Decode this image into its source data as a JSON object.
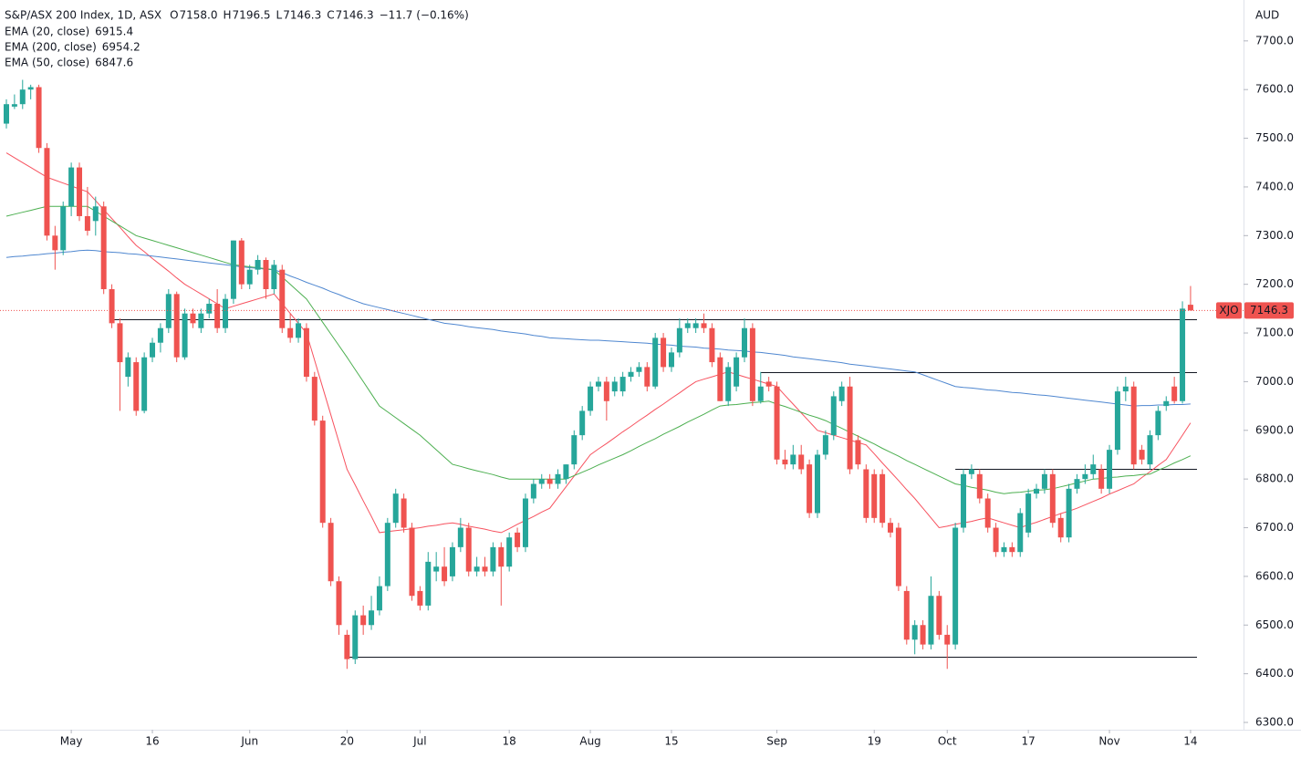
{
  "chart_data": {
    "type": "candlestick",
    "title": "S&P/ASX 200 Index, 1D, ASX",
    "ohlc": [
      {
        "label": "O",
        "value": "7158.0"
      },
      {
        "label": "H",
        "value": "7196.5"
      },
      {
        "label": "L",
        "value": "7146.3"
      },
      {
        "label": "C",
        "value": "7146.3"
      }
    ],
    "change": "−11.7 (−0.16%)",
    "header_color": "#f23645",
    "symbol": "XJO",
    "y_axis_label": "AUD",
    "up_color": "#26a69a",
    "down_color": "#ef5350",
    "ylim": [
      6285,
      7784
    ],
    "yticks": [
      {
        "value": 6300,
        "label": "6300.0"
      },
      {
        "value": 6400,
        "label": "6400.0"
      },
      {
        "value": 6500,
        "label": "6500.0"
      },
      {
        "value": 6600,
        "label": "6600.0"
      },
      {
        "value": 6700,
        "label": "6700.0"
      },
      {
        "value": 6800,
        "label": "6800.0"
      },
      {
        "value": 6900,
        "label": "6900.0"
      },
      {
        "value": 7000,
        "label": "7000.0"
      },
      {
        "value": 7100,
        "label": "7100.0"
      },
      {
        "value": 7200,
        "label": "7200.0"
      },
      {
        "value": 7300,
        "label": "7300.0"
      },
      {
        "value": 7400,
        "label": "7400.0"
      },
      {
        "value": 7500,
        "label": "7500.0"
      },
      {
        "value": 7600,
        "label": "7600.0"
      },
      {
        "value": 7700,
        "label": "7700.0"
      }
    ],
    "levels": [
      7128,
      7020,
      6821,
      6435
    ],
    "levels_color": "#131722",
    "categories": [
      null,
      null,
      null,
      null,
      null,
      null,
      null,
      null,
      "May",
      null,
      null,
      null,
      null,
      null,
      null,
      null,
      null,
      null,
      "16",
      null,
      null,
      null,
      null,
      null,
      null,
      null,
      null,
      null,
      null,
      null,
      "Jun",
      null,
      null,
      null,
      null,
      null,
      null,
      null,
      null,
      null,
      null,
      null,
      "20",
      null,
      null,
      null,
      null,
      null,
      null,
      null,
      null,
      "Jul",
      null,
      null,
      null,
      null,
      null,
      null,
      null,
      null,
      null,
      null,
      "18",
      null,
      null,
      null,
      null,
      null,
      null,
      null,
      null,
      null,
      "Aug",
      null,
      null,
      null,
      null,
      null,
      null,
      null,
      null,
      null,
      "15",
      null,
      null,
      null,
      null,
      null,
      null,
      null,
      null,
      null,
      null,
      null,
      null,
      "Sep",
      null,
      null,
      null,
      null,
      null,
      null,
      null,
      null,
      null,
      null,
      null,
      "19",
      null,
      null,
      null,
      null,
      null,
      null,
      null,
      null,
      "Oct",
      null,
      null,
      null,
      null,
      null,
      null,
      null,
      null,
      null,
      "17",
      null,
      null,
      null,
      null,
      null,
      null,
      null,
      null,
      null,
      "Nov",
      null,
      null,
      null,
      null,
      null,
      null,
      null,
      null,
      null,
      "14"
    ],
    "open": [
      7530,
      7565,
      7570,
      7600,
      7605,
      7480,
      7300,
      7270,
      7360,
      7440,
      7340,
      7330,
      7360,
      7190,
      7120,
      7010,
      7040,
      6940,
      7050,
      7080,
      7110,
      7180,
      7050,
      7140,
      7110,
      7140,
      7160,
      7110,
      7170,
      7290,
      7200,
      7230,
      7250,
      7190,
      7230,
      7110,
      7090,
      7110,
      7010,
      6920,
      6710,
      6590,
      6480,
      6430,
      6520,
      6500,
      6530,
      6580,
      6710,
      6760,
      6700,
      6570,
      6540,
      6610,
      6620,
      6600,
      6660,
      6700,
      6610,
      6620,
      6610,
      6660,
      6620,
      6690,
      6660,
      6760,
      6790,
      6800,
      6790,
      6800,
      6830,
      6890,
      6940,
      6990,
      7000,
      6980,
      6980,
      7010,
      7020,
      7030,
      6990,
      7090,
      7030,
      7060,
      7110,
      7110,
      7120,
      7110,
      7050,
      6960,
      6990,
      7050,
      7110,
      6960,
      7000,
      6990,
      6840,
      6830,
      6850,
      6830,
      6730,
      6850,
      6890,
      6960,
      6990,
      6880,
      6820,
      6810,
      6810,
      6710,
      6700,
      6570,
      6470,
      6500,
      6460,
      6560,
      6480,
      6460,
      6700,
      6810,
      6810,
      6760,
      6700,
      6650,
      6660,
      6650,
      6690,
      6770,
      6780,
      6810,
      6720,
      6680,
      6780,
      6800,
      6810,
      6820,
      6780,
      6860,
      6980,
      6990,
      6860,
      6830,
      6890,
      6950,
      6990,
      6960,
      7158
    ],
    "high": [
      7580,
      7590,
      7620,
      7610,
      7610,
      7490,
      7320,
      7370,
      7450,
      7450,
      7400,
      7380,
      7370,
      7200,
      7130,
      7060,
      7050,
      7060,
      7090,
      7120,
      7190,
      7185,
      7150,
      7150,
      7150,
      7170,
      7190,
      7180,
      7290,
      7295,
      7240,
      7260,
      7255,
      7250,
      7240,
      7140,
      7130,
      7120,
      7020,
      6930,
      6720,
      6600,
      6490,
      6530,
      6540,
      6560,
      6600,
      6720,
      6780,
      6770,
      6710,
      6580,
      6650,
      6650,
      6660,
      6670,
      6720,
      6710,
      6640,
      6640,
      6670,
      6670,
      6690,
      6700,
      6770,
      6800,
      6810,
      6810,
      6820,
      6830,
      6900,
      6950,
      7000,
      7010,
      7010,
      7010,
      7020,
      7030,
      7040,
      7040,
      7100,
      7100,
      7070,
      7130,
      7130,
      7130,
      7140,
      7120,
      7060,
      7040,
      7060,
      7130,
      7120,
      7020,
      7010,
      7000,
      6860,
      6870,
      6870,
      6840,
      6860,
      6900,
      6980,
      7000,
      7010,
      6890,
      6830,
      6820,
      6820,
      6720,
      6710,
      6580,
      6510,
      6510,
      6600,
      6570,
      6500,
      6710,
      6820,
      6830,
      6820,
      6770,
      6710,
      6670,
      6670,
      6740,
      6780,
      6790,
      6820,
      6820,
      6730,
      6790,
      6810,
      6830,
      6850,
      6830,
      6870,
      6990,
      7010,
      7000,
      6870,
      6900,
      6950,
      6970,
      7010,
      7165,
      7196.5
    ],
    "low": [
      7520,
      7560,
      7560,
      7580,
      7470,
      7290,
      7230,
      7260,
      7340,
      7330,
      7300,
      7300,
      7180,
      7110,
      6940,
      6990,
      6930,
      6935,
      7040,
      7060,
      7100,
      7040,
      7045,
      7110,
      7100,
      7130,
      7100,
      7100,
      7160,
      7190,
      7190,
      7220,
      7170,
      7180,
      7100,
      7080,
      7080,
      7000,
      6910,
      6700,
      6580,
      6480,
      6410,
      6420,
      6480,
      6490,
      6520,
      6570,
      6700,
      6690,
      6550,
      6530,
      6530,
      6590,
      6580,
      6590,
      6650,
      6600,
      6600,
      6600,
      6600,
      6540,
      6610,
      6650,
      6650,
      6750,
      6780,
      6780,
      6780,
      6790,
      6820,
      6880,
      6930,
      6980,
      6920,
      6970,
      6970,
      7000,
      7010,
      6980,
      6985,
      7020,
      7020,
      7050,
      7100,
      7100,
      7100,
      7030,
      6960,
      6950,
      6980,
      7040,
      6950,
      6955,
      6980,
      6830,
      6820,
      6820,
      6810,
      6720,
      6720,
      6840,
      6880,
      6950,
      6810,
      6820,
      6710,
      6710,
      6700,
      6680,
      6570,
      6460,
      6440,
      6450,
      6450,
      6470,
      6410,
      6450,
      6690,
      6800,
      6750,
      6690,
      6640,
      6640,
      6640,
      6640,
      6680,
      6760,
      6770,
      6700,
      6670,
      6670,
      6770,
      6790,
      6800,
      6770,
      6770,
      6850,
      6960,
      6820,
      6830,
      6820,
      6880,
      6940,
      6955,
      6955,
      7146.3
    ],
    "close": [
      7570,
      7570,
      7600,
      7605,
      7480,
      7300,
      7270,
      7360,
      7440,
      7340,
      7310,
      7360,
      7190,
      7120,
      7040,
      7050,
      6940,
      7050,
      7080,
      7110,
      7180,
      7050,
      7140,
      7120,
      7140,
      7160,
      7110,
      7170,
      7290,
      7200,
      7230,
      7250,
      7190,
      7240,
      7110,
      7090,
      7120,
      7010,
      6920,
      6710,
      6590,
      6500,
      6430,
      6520,
      6500,
      6530,
      6580,
      6710,
      6770,
      6700,
      6560,
      6540,
      6630,
      6620,
      6590,
      6660,
      6700,
      6610,
      6620,
      6610,
      6660,
      6620,
      6680,
      6660,
      6760,
      6790,
      6800,
      6790,
      6810,
      6830,
      6890,
      6940,
      6990,
      7000,
      6960,
      7000,
      7010,
      7020,
      7030,
      6990,
      7090,
      7030,
      7060,
      7110,
      7120,
      7120,
      7110,
      7040,
      6960,
      7030,
      7050,
      7110,
      6960,
      6990,
      6990,
      6840,
      6830,
      6850,
      6820,
      6730,
      6850,
      6890,
      6970,
      6990,
      6820,
      6830,
      6720,
      6720,
      6710,
      6690,
      6580,
      6470,
      6500,
      6460,
      6560,
      6480,
      6460,
      6700,
      6810,
      6820,
      6760,
      6700,
      6650,
      6660,
      6650,
      6730,
      6770,
      6780,
      6810,
      6710,
      6680,
      6780,
      6800,
      6810,
      6830,
      6780,
      6860,
      6980,
      6990,
      6830,
      6840,
      6890,
      6940,
      6960,
      6960,
      7150,
      7146.3
    ],
    "series": [
      {
        "name": "EMA (20, close)",
        "color": "#f7525f",
        "values": [
          7470,
          7460,
          7450,
          7440,
          7430,
          7420,
          7414,
          7408,
          7402,
          7396,
          7390,
          7372,
          7353,
          7335,
          7317,
          7298,
          7280,
          7267,
          7253,
          7240,
          7227,
          7213,
          7200,
          7190,
          7180,
          7170,
          7160,
          7150,
          7155,
          7160,
          7165,
          7170,
          7175,
          7180,
          7160,
          7140,
          7120,
          7100,
          7044,
          6988,
          6932,
          6876,
          6820,
          6788,
          6755,
          6723,
          6690,
          6692,
          6694,
          6696,
          6698,
          6700,
          6703,
          6705,
          6708,
          6710,
          6707,
          6703,
          6700,
          6697,
          6693,
          6690,
          6698,
          6707,
          6715,
          6723,
          6732,
          6740,
          6762,
          6784,
          6806,
          6828,
          6850,
          6862,
          6873,
          6885,
          6897,
          6908,
          6920,
          6931,
          6943,
          6954,
          6966,
          6977,
          6989,
          7000,
          7005,
          7010,
          7015,
          7020,
          7015,
          7010,
          7005,
          7000,
          6995,
          6990,
          6972,
          6954,
          6936,
          6918,
          6900,
          6895,
          6890,
          6885,
          6880,
          6875,
          6870,
          6852,
          6833,
          6815,
          6797,
          6778,
          6760,
          6740,
          6720,
          6700,
          6703,
          6707,
          6710,
          6713,
          6717,
          6720,
          6715,
          6710,
          6705,
          6700,
          6706,
          6711,
          6717,
          6723,
          6729,
          6734,
          6740,
          6747,
          6754,
          6761,
          6769,
          6776,
          6783,
          6790,
          6803,
          6815,
          6828,
          6840,
          6865,
          6890,
          6915.4
        ]
      },
      {
        "name": "EMA (200, close)",
        "color": "#4f87d0",
        "values": [
          7255,
          7257,
          7258,
          7260,
          7261,
          7263,
          7264,
          7266,
          7267,
          7269,
          7270,
          7269,
          7267,
          7266,
          7265,
          7263,
          7262,
          7260,
          7258,
          7256,
          7254,
          7252,
          7250,
          7248,
          7246,
          7244,
          7242,
          7240,
          7238,
          7236,
          7234,
          7233,
          7231,
          7230,
          7224,
          7217,
          7211,
          7204,
          7198,
          7192,
          7185,
          7179,
          7172,
          7166,
          7160,
          7156,
          7152,
          7148,
          7144,
          7140,
          7136,
          7132,
          7128,
          7124,
          7120,
          7118,
          7116,
          7113,
          7111,
          7109,
          7107,
          7104,
          7102,
          7100,
          7098,
          7095,
          7093,
          7090,
          7089,
          7088,
          7087,
          7086,
          7085,
          7085,
          7084,
          7083,
          7082,
          7081,
          7080,
          7079,
          7077,
          7076,
          7075,
          7073,
          7072,
          7071,
          7069,
          7068,
          7067,
          7065,
          7064,
          7063,
          7061,
          7060,
          7058,
          7056,
          7054,
          7051,
          7049,
          7047,
          7045,
          7043,
          7041,
          7039,
          7036,
          7034,
          7032,
          7030,
          7028,
          7026,
          7024,
          7022,
          7020,
          7014,
          7008,
          7002,
          6996,
          6990,
          6988,
          6987,
          6985,
          6983,
          6982,
          6980,
          6978,
          6977,
          6975,
          6973,
          6972,
          6970,
          6968,
          6966,
          6964,
          6962,
          6960,
          6958,
          6956,
          6954,
          6952,
          6950,
          6951,
          6951,
          6952,
          6952,
          6953,
          6953,
          6954.2
        ]
      },
      {
        "name": "EMA (50, close)",
        "color": "#4caf50",
        "values": [
          7340,
          7344,
          7348,
          7352,
          7356,
          7360,
          7360,
          7360,
          7360,
          7360,
          7360,
          7350,
          7340,
          7330,
          7320,
          7310,
          7300,
          7295,
          7290,
          7285,
          7280,
          7275,
          7270,
          7265,
          7260,
          7255,
          7250,
          7245,
          7240,
          7238,
          7236,
          7234,
          7232,
          7230,
          7215,
          7200,
          7185,
          7170,
          7146,
          7122,
          7098,
          7074,
          7050,
          7025,
          7000,
          6975,
          6950,
          6938,
          6926,
          6914,
          6902,
          6890,
          6875,
          6860,
          6845,
          6830,
          6826,
          6821,
          6817,
          6813,
          6809,
          6804,
          6800,
          6800,
          6800,
          6800,
          6800,
          6800,
          6800,
          6800,
          6807,
          6814,
          6821,
          6829,
          6836,
          6843,
          6850,
          6858,
          6867,
          6875,
          6883,
          6892,
          6900,
          6908,
          6917,
          6925,
          6933,
          6942,
          6950,
          6952,
          6953,
          6955,
          6957,
          6958,
          6960,
          6954,
          6949,
          6943,
          6937,
          6931,
          6926,
          6920,
          6912,
          6904,
          6896,
          6888,
          6880,
          6872,
          6863,
          6855,
          6847,
          6838,
          6830,
          6822,
          6814,
          6806,
          6798,
          6790,
          6787,
          6783,
          6780,
          6777,
          6773,
          6770,
          6772,
          6773,
          6775,
          6777,
          6778,
          6780,
          6784,
          6788,
          6792,
          6796,
          6800,
          6801,
          6803,
          6804,
          6806,
          6807,
          6809,
          6810,
          6818,
          6825,
          6833,
          6840,
          6847.6
        ]
      }
    ]
  }
}
